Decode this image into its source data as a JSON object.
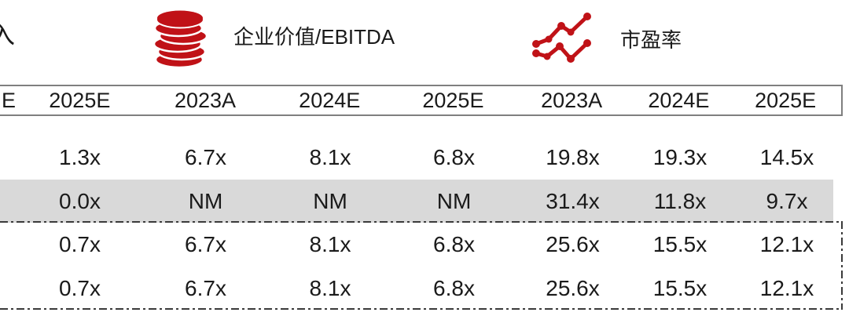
{
  "legend": {
    "partial_group_label": "入",
    "groups": [
      {
        "icon": "coins-icon",
        "label": "企业价值/EBITDA"
      },
      {
        "icon": "line-chart-icon",
        "label": "市盈率"
      }
    ]
  },
  "table": {
    "column_headers": [
      "E",
      "2025E",
      "2023A",
      "2024E",
      "2025E",
      "2023A",
      "2024E",
      "2025E"
    ],
    "rows": [
      {
        "values": [
          "",
          "1.3x",
          "6.7x",
          "8.1x",
          "6.8x",
          "19.8x",
          "19.3x",
          "14.5x"
        ],
        "highlight": false
      },
      {
        "values": [
          "",
          "0.0x",
          "NM",
          "NM",
          "NM",
          "31.4x",
          "11.8x",
          "9.7x"
        ],
        "highlight": true
      },
      {
        "values": [
          "",
          "0.7x",
          "6.7x",
          "8.1x",
          "6.8x",
          "25.6x",
          "15.5x",
          "12.1x"
        ],
        "highlight": false
      },
      {
        "values": [
          "",
          "0.7x",
          "6.7x",
          "8.1x",
          "6.8x",
          "25.6x",
          "15.5x",
          "12.1x"
        ],
        "highlight": false
      }
    ]
  },
  "colors": {
    "accent_red": "#C01217",
    "highlight_row_bg": "#D9D9D9",
    "header_border": "#7F7F7F",
    "dashed_border": "#3A3A3A",
    "text": "#1A1A1A"
  }
}
